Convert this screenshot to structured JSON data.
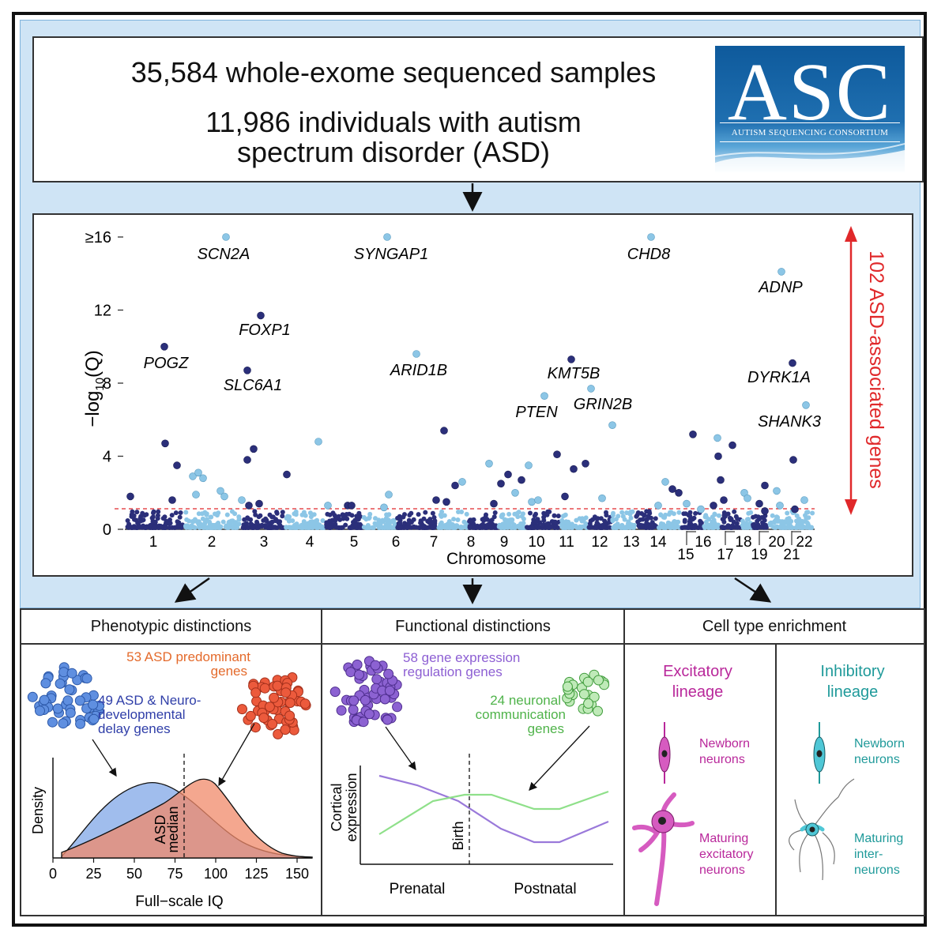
{
  "header": {
    "line1": "35,584 whole-exome sequenced samples",
    "line2": "11,986 individuals with autism",
    "line3": "spectrum disorder (ASD)"
  },
  "logo": {
    "big": "ASC",
    "small": "AUTISM SEQUENCING CONSORTIUM"
  },
  "manhattan": {
    "yaxis_label": "−log10(Q)",
    "y_ticks": [
      "≥16",
      "12",
      "8",
      "4",
      "0"
    ],
    "x_label": "Chromosome",
    "chrom_labels_upper": [
      "1",
      "2",
      "3",
      "4",
      "5",
      "6",
      "7",
      "8",
      "9",
      "10",
      "11",
      "12",
      "13",
      "14",
      "16",
      "18",
      "20",
      "22"
    ],
    "chrom_labels_lower": [
      "15",
      "17",
      "19",
      "21"
    ],
    "side_label": "102 ASD-associated genes",
    "genes": [
      "SCN2A",
      "SYNGAP1",
      "CHD8",
      "ADNP",
      "FOXP1",
      "POGZ",
      "SLC6A1",
      "ARID1B",
      "KMT5B",
      "DYRK1A",
      "GRIN2B",
      "PTEN",
      "SHANK3"
    ],
    "colors": {
      "dark": "#2b2f7a",
      "light": "#8cc6e6",
      "threshold": "#e0282a"
    }
  },
  "chart_data": {
    "type": "scatter",
    "title": "",
    "xlabel": "Chromosome",
    "ylabel": "−log10(Q)",
    "ylim": [
      0,
      16
    ],
    "threshold": 1,
    "points": [
      {
        "gene": "SCN2A",
        "chrom": "2",
        "value": 16
      },
      {
        "gene": "SYNGAP1",
        "chrom": "6",
        "value": 16
      },
      {
        "gene": "CHD8",
        "chrom": "14",
        "value": 16
      },
      {
        "gene": "ADNP",
        "chrom": "20",
        "value": 14.1
      },
      {
        "gene": "FOXP1",
        "chrom": "3",
        "value": 11.7
      },
      {
        "gene": "POGZ",
        "chrom": "1",
        "value": 10
      },
      {
        "gene": "ARID1B",
        "chrom": "6",
        "value": 9.6
      },
      {
        "gene": "KMT5B",
        "chrom": "11",
        "value": 9.3
      },
      {
        "gene": "DYRK1A",
        "chrom": "21",
        "value": 9.1
      },
      {
        "gene": "SLC6A1",
        "chrom": "3",
        "value": 8.7
      },
      {
        "gene": "GRIN2B",
        "chrom": "12",
        "value": 7.7
      },
      {
        "gene": "PTEN",
        "chrom": "10",
        "value": 7.3
      },
      {
        "gene": "SHANK3",
        "chrom": "22",
        "value": 6.8
      }
    ]
  },
  "panels": {
    "phenotypic": {
      "title": "Phenotypic distinctions",
      "orange_label_1": "53 ASD predominant",
      "orange_label_2": "genes",
      "blue_label_1": "49 ASD & Neuro-",
      "blue_label_2": "developmental",
      "blue_label_3": "delay genes",
      "ylabel": "Density",
      "xlabel": "Full−scale IQ",
      "median_label_1": "ASD",
      "median_label_2": "median",
      "x_ticks": [
        "0",
        "25",
        "50",
        "75",
        "100",
        "125",
        "150"
      ]
    },
    "functional": {
      "title": "Functional distinctions",
      "purple_label_1": "58 gene expression",
      "purple_label_2": "regulation genes",
      "green_label_1": "24 neuronal",
      "green_label_2": "communication",
      "green_label_3": "genes",
      "ylabel_1": "Cortical",
      "ylabel_2": "expression",
      "birth_label": "Birth",
      "prenatal": "Prenatal",
      "postnatal": "Postnatal"
    },
    "celltype": {
      "title": "Cell type enrichment",
      "exc_title_1": "Excitatory",
      "exc_title_2": "lineage",
      "inh_title_1": "Inhibitory",
      "inh_title_2": "lineage",
      "exc_newborn_1": "Newborn",
      "exc_newborn_2": "neurons",
      "exc_mature_1": "Maturing",
      "exc_mature_2": "excitatory",
      "exc_mature_3": "neurons",
      "inh_newborn_1": "Newborn",
      "inh_newborn_2": "neurons",
      "inh_mature_1": "Maturing",
      "inh_mature_2": "inter-",
      "inh_mature_3": "neurons",
      "colors": {
        "exc": "#b9289b",
        "inh": "#1f9a9a"
      }
    }
  }
}
